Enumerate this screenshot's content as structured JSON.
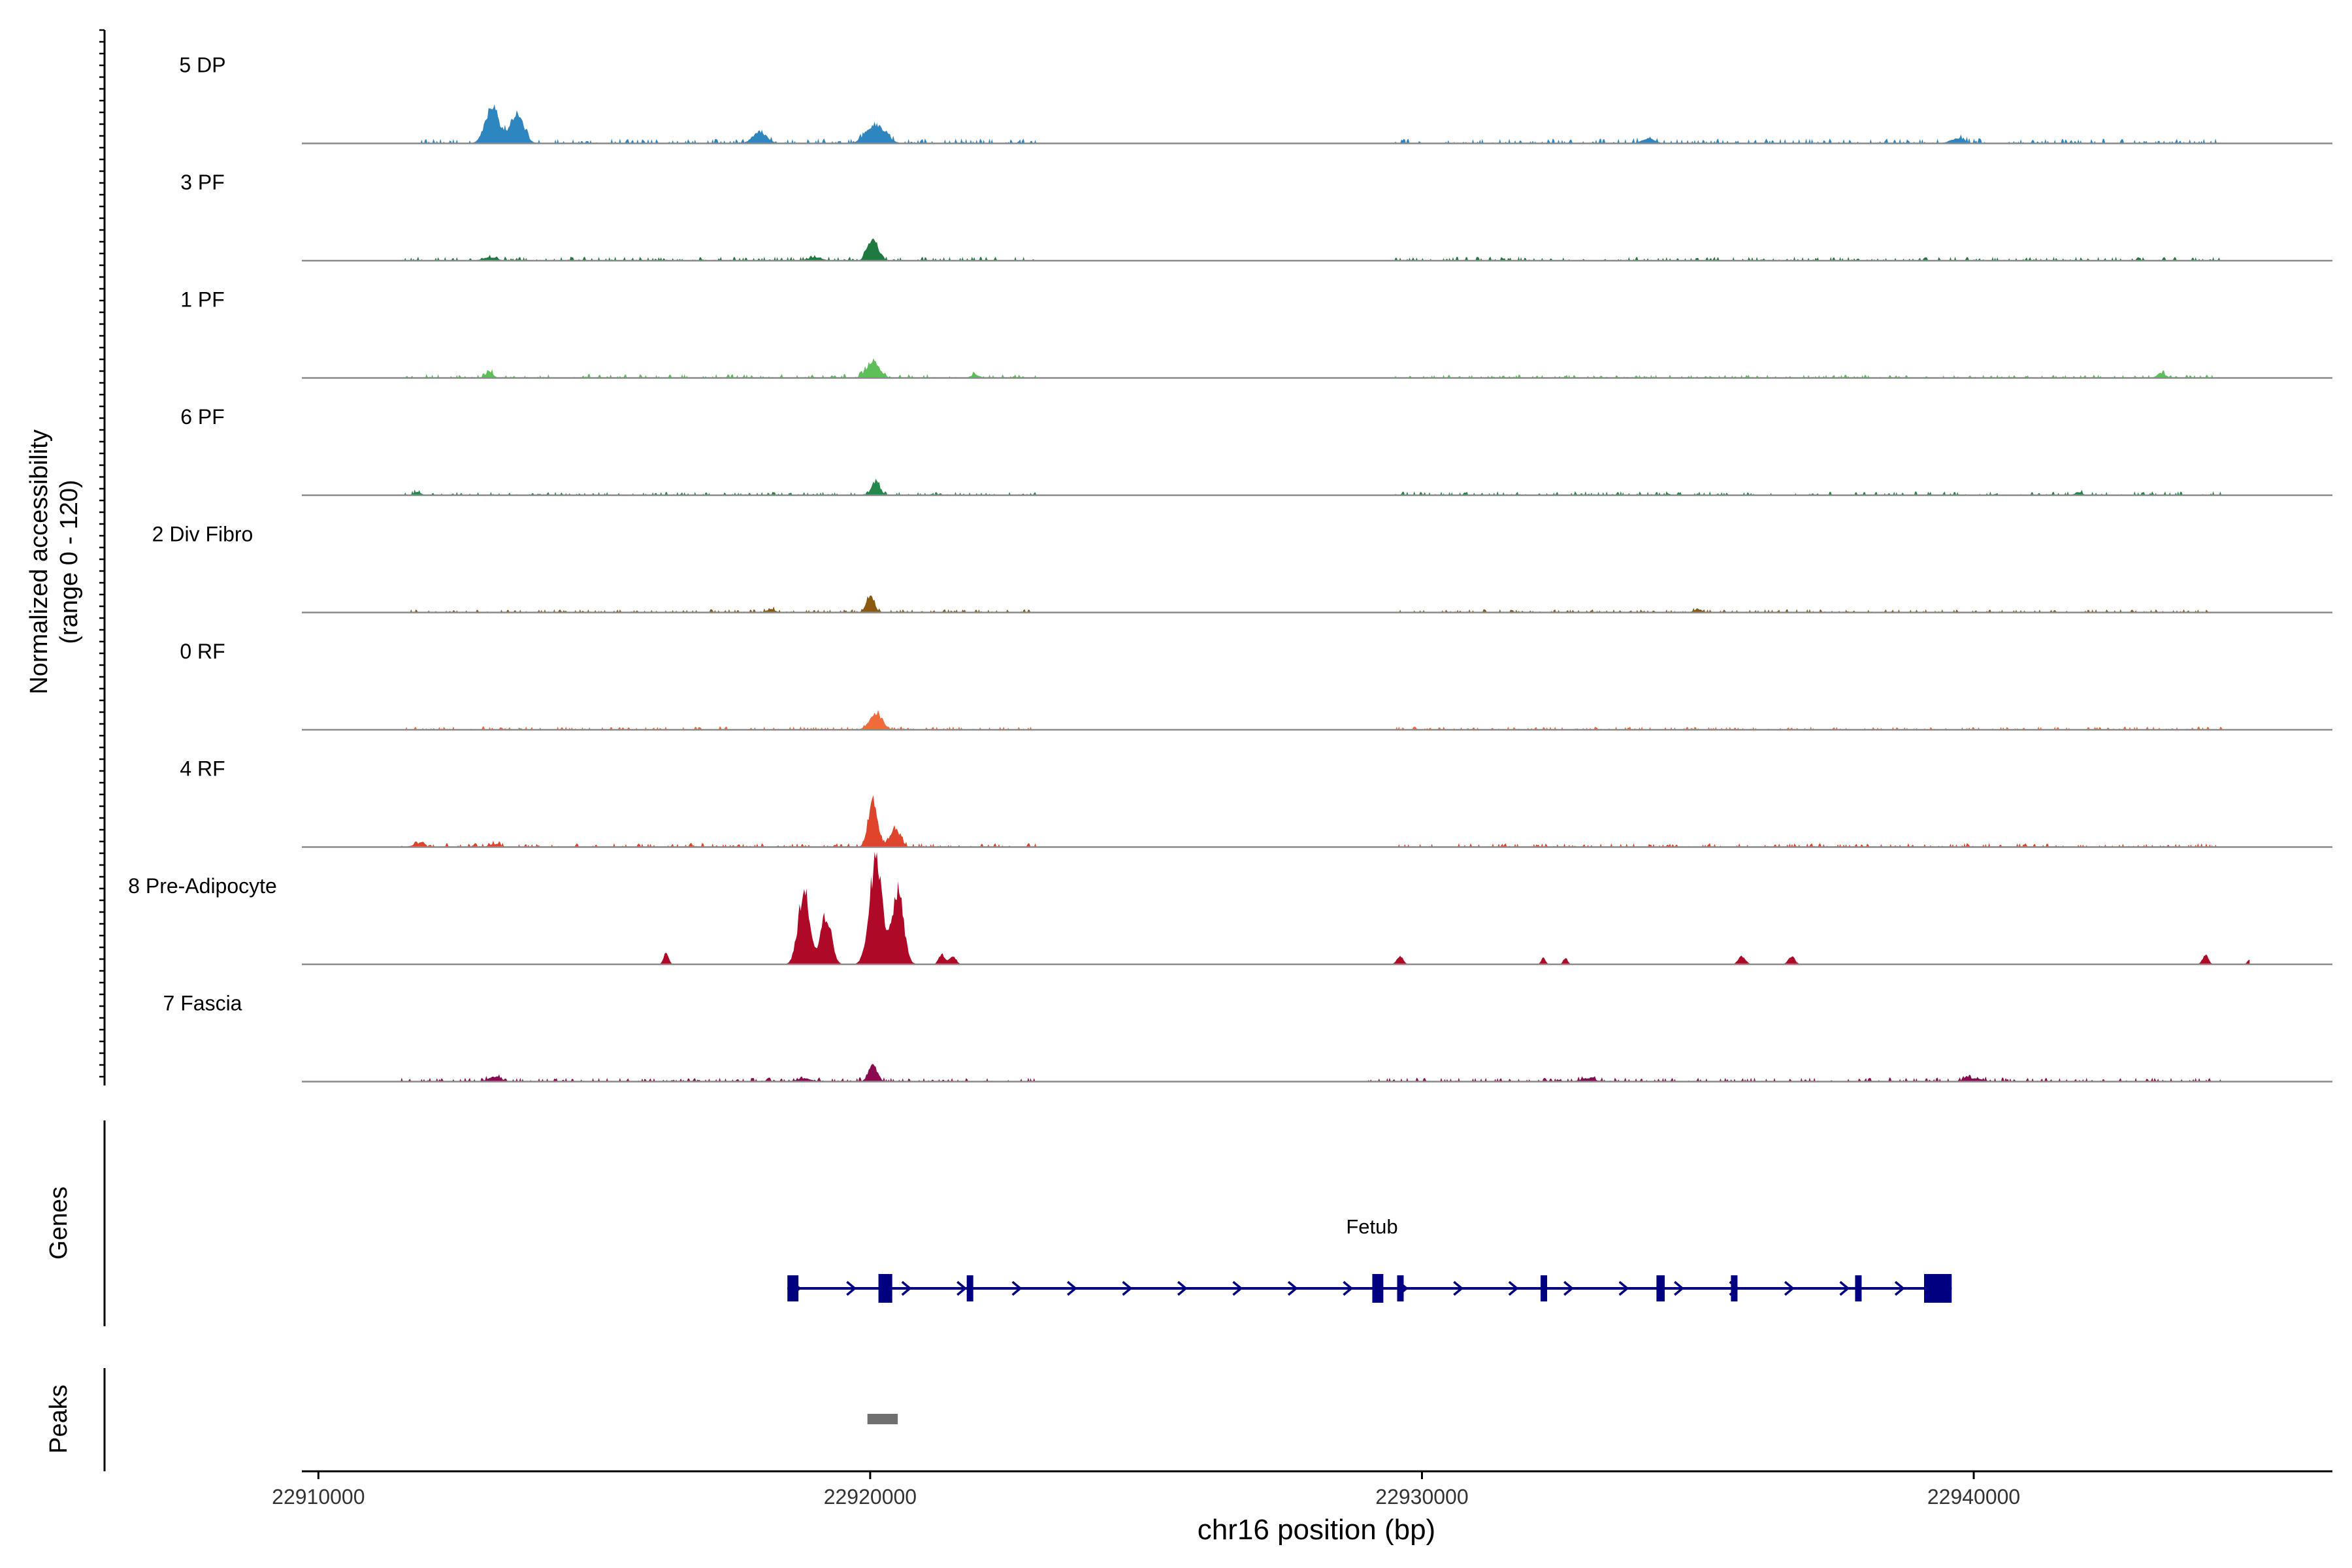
{
  "chart_data": {
    "type": "area",
    "ylabel_line1": "Normalized accessibility",
    "ylabel_line2": "(range 0 - 120)",
    "ylim": [
      0,
      120
    ],
    "xlabel": "chr16 position (bp)",
    "xlim": [
      22909700,
      22946500
    ],
    "xticks": [
      22910000,
      22920000,
      22930000,
      22940000
    ],
    "xtick_labels": [
      "22910000",
      "22920000",
      "22930000",
      "22940000"
    ],
    "tracks": [
      {
        "name": "5 DP",
        "color": "#2E86C1",
        "peaks": [
          [
            22913150,
            22,
            190
          ],
          [
            22913600,
            18,
            190
          ],
          [
            22918000,
            7,
            200
          ],
          [
            22920100,
            12,
            260
          ],
          [
            22934100,
            3,
            180
          ],
          [
            22939700,
            3,
            200
          ]
        ],
        "noise": [
          [
            22911800,
            22923000,
            1.5
          ],
          [
            22929500,
            22944500,
            1.5
          ]
        ]
      },
      {
        "name": "3 PF",
        "color": "#1E7A3E",
        "peaks": [
          [
            22920050,
            12,
            150
          ],
          [
            22913100,
            2,
            200
          ],
          [
            22919000,
            2,
            200
          ]
        ],
        "noise": [
          [
            22911500,
            22923000,
            1.2
          ],
          [
            22929500,
            22944500,
            1.2
          ]
        ]
      },
      {
        "name": "1 PF",
        "color": "#5CBF5A",
        "peaks": [
          [
            22920050,
            10,
            180
          ],
          [
            22913100,
            4,
            100
          ],
          [
            22921900,
            2,
            120
          ],
          [
            22943400,
            3,
            120
          ]
        ],
        "noise": [
          [
            22911500,
            22923000,
            1.2
          ],
          [
            22929500,
            22944500,
            1.0
          ]
        ]
      },
      {
        "name": "6 PF",
        "color": "#23894A",
        "peaks": [
          [
            22920100,
            8,
            120
          ],
          [
            22941900,
            2,
            100
          ],
          [
            22911800,
            2,
            100
          ]
        ],
        "noise": [
          [
            22911500,
            22923000,
            1.0
          ],
          [
            22929500,
            22944500,
            1.2
          ]
        ]
      },
      {
        "name": "2 Div Fibro",
        "color": "#8C5A0E",
        "peaks": [
          [
            22920000,
            10,
            110
          ],
          [
            22918200,
            2,
            120
          ],
          [
            22935000,
            2,
            120
          ]
        ],
        "noise": [
          [
            22911500,
            22923000,
            1.0
          ],
          [
            22929500,
            22944500,
            1.0
          ]
        ]
      },
      {
        "name": "0 RF",
        "color": "#F06A3A",
        "peaks": [
          [
            22920100,
            10,
            180
          ]
        ],
        "noise": [
          [
            22911500,
            22923000,
            1.0
          ],
          [
            22929500,
            22944500,
            1.0
          ]
        ]
      },
      {
        "name": "4 RF",
        "color": "#E0442A",
        "peaks": [
          [
            22920050,
            28,
            130
          ],
          [
            22920450,
            12,
            140
          ],
          [
            22911800,
            2,
            150
          ],
          [
            22913200,
            2,
            150
          ]
        ],
        "noise": [
          [
            22911500,
            22923000,
            1.2
          ],
          [
            22929500,
            22944500,
            1.2
          ]
        ]
      },
      {
        "name": "8 Pre-Adipocyte",
        "color": "#AE0A28",
        "peaks": [
          [
            22918800,
            45,
            160
          ],
          [
            22919200,
            30,
            150
          ],
          [
            22920100,
            62,
            180
          ],
          [
            22920500,
            45,
            160
          ],
          [
            22916300,
            7,
            70
          ],
          [
            22921300,
            6,
            90
          ],
          [
            22921500,
            5,
            90
          ],
          [
            22929600,
            5,
            90
          ],
          [
            22932200,
            4,
            60
          ],
          [
            22932600,
            4,
            60
          ],
          [
            22935800,
            5,
            100
          ],
          [
            22936700,
            5,
            90
          ],
          [
            22944200,
            6,
            80
          ],
          [
            22945000,
            3,
            60
          ]
        ],
        "noise": []
      },
      {
        "name": "7 Fascia",
        "color": "#8B0A4F",
        "peaks": [
          [
            22920050,
            10,
            120
          ],
          [
            22913200,
            3,
            180
          ],
          [
            22918800,
            2,
            200
          ],
          [
            22933000,
            2,
            200
          ],
          [
            22940000,
            2,
            250
          ]
        ],
        "noise": [
          [
            22911500,
            22923000,
            1.2
          ],
          [
            22929000,
            22944500,
            1.2
          ]
        ]
      }
    ],
    "genes": {
      "track_label": "Genes",
      "name": "Fetub",
      "strand": "+",
      "start": 22918500,
      "end": 22939600,
      "color": "#000080",
      "exons": [
        [
          22918500,
          22918700
        ],
        [
          22920150,
          22920400
        ],
        [
          22921750,
          22921850
        ],
        [
          22929100,
          22929300
        ],
        [
          22929550,
          22929650
        ],
        [
          22932150,
          22932250
        ],
        [
          22934250,
          22934400
        ],
        [
          22935600,
          22935700
        ],
        [
          22937850,
          22937950
        ],
        [
          22939100,
          22939600
        ]
      ]
    },
    "peaks_track": {
      "track_label": "Peaks",
      "color": "#707070",
      "regions": [
        [
          22919950,
          22920500
        ]
      ]
    }
  }
}
